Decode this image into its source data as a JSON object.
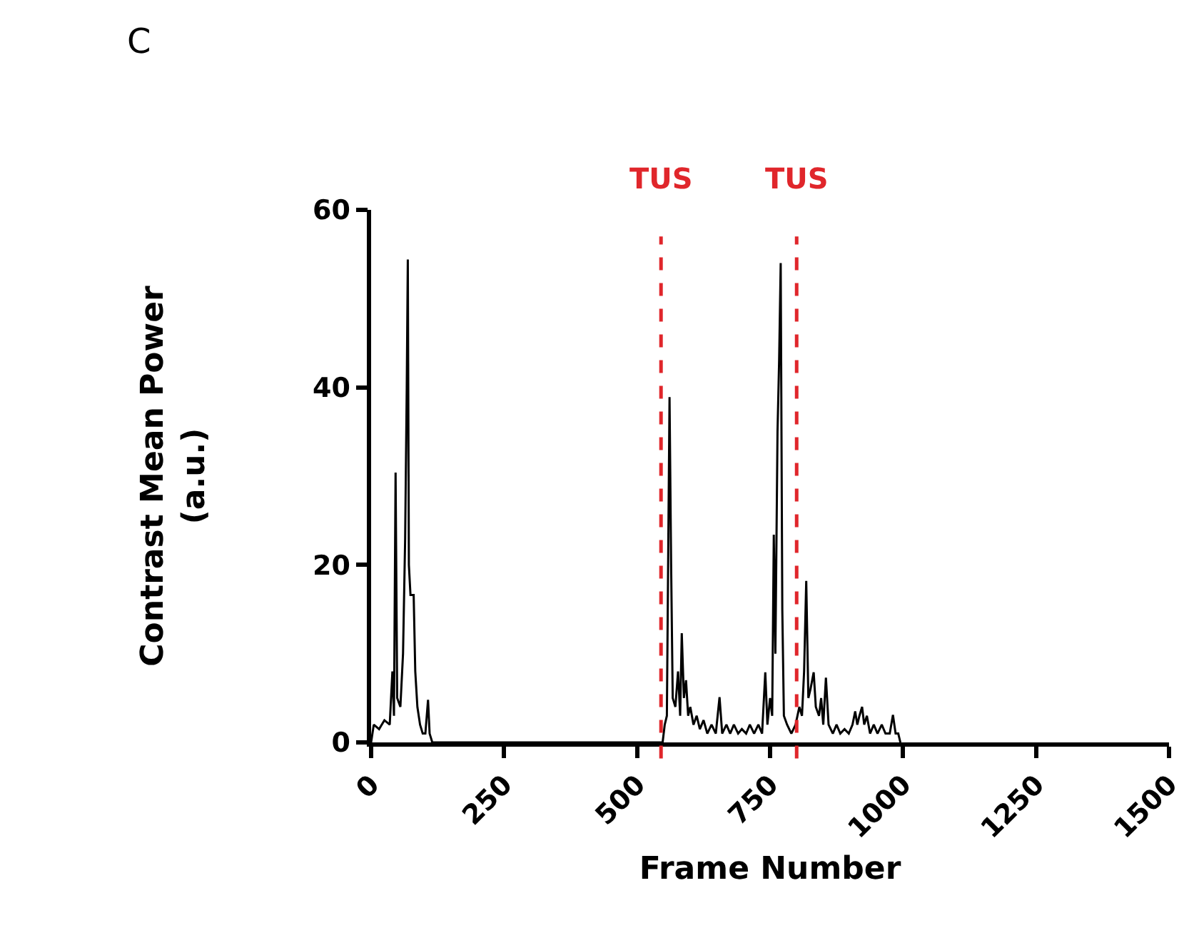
{
  "chart_data": {
    "type": "line",
    "xlabel": "Frame Number",
    "ylabel": "Contrast Mean Power\n(a.u.)",
    "annotations": [
      "C"
    ],
    "xlim": [
      0,
      1500
    ],
    "xticks": [
      0,
      250,
      500,
      750,
      1000,
      1250,
      1500
    ],
    "ylim": [
      0,
      60
    ],
    "yticks": [
      0,
      20,
      40,
      60
    ],
    "marker": "none",
    "line_style": "solid",
    "ref_lines": [
      {
        "axis": "x",
        "value": 545,
        "label": "TUS",
        "color": "#e0262b",
        "line_style": "dashed"
      },
      {
        "axis": "x",
        "value": 800,
        "label": "TUS",
        "color": "#e0262b",
        "line_style": "dashed"
      }
    ],
    "series": [
      {
        "color": "#000000",
        "x": [
          0,
          5,
          15,
          25,
          35,
          40,
          43,
          46,
          49,
          55,
          60,
          64,
          67,
          69,
          71,
          74,
          78,
          80,
          83,
          87,
          92,
          97,
          102,
          107,
          110,
          115,
          540,
          548,
          552,
          556,
          561,
          564,
          567,
          572,
          577,
          581,
          584,
          588,
          592,
          596,
          600,
          606,
          612,
          618,
          625,
          632,
          640,
          648,
          655,
          660,
          668,
          675,
          682,
          690,
          697,
          705,
          712,
          720,
          728,
          735,
          741,
          745,
          750,
          754,
          757,
          760,
          764,
          767,
          770,
          773,
          776,
          782,
          790,
          798,
          805,
          810,
          814,
          818,
          822,
          826,
          832,
          836,
          842,
          846,
          850,
          855,
          860,
          868,
          875,
          882,
          890,
          898,
          905,
          910,
          914,
          918,
          923,
          927,
          932,
          938,
          945,
          952,
          960,
          967,
          975,
          981,
          986,
          991,
          995
        ],
        "values": [
          0,
          2,
          1.5,
          2.5,
          2,
          8,
          3,
          30.4,
          5,
          4,
          10,
          23,
          40,
          54.4,
          20,
          16.6,
          16.6,
          16.6,
          8,
          4,
          2,
          1,
          1,
          4.8,
          1,
          0,
          0,
          0,
          2,
          3,
          38.9,
          20,
          5,
          4,
          8,
          3,
          12.3,
          5,
          7,
          3,
          4,
          2,
          3,
          1.5,
          2.5,
          1,
          2,
          1,
          5.1,
          1,
          2,
          1,
          2,
          1,
          1.5,
          1,
          2,
          1,
          2,
          1,
          7.9,
          2,
          5,
          3,
          23.4,
          10,
          35,
          43,
          54,
          15,
          3,
          2,
          1,
          2,
          4,
          3,
          8,
          18.2,
          5,
          6,
          7.9,
          4,
          3,
          5,
          2,
          7.3,
          2,
          1,
          2,
          1,
          1.5,
          1,
          2,
          3.5,
          2,
          3,
          4,
          2,
          3,
          1,
          2,
          1,
          2,
          1,
          1,
          3.1,
          1,
          1,
          0
        ]
      }
    ]
  }
}
